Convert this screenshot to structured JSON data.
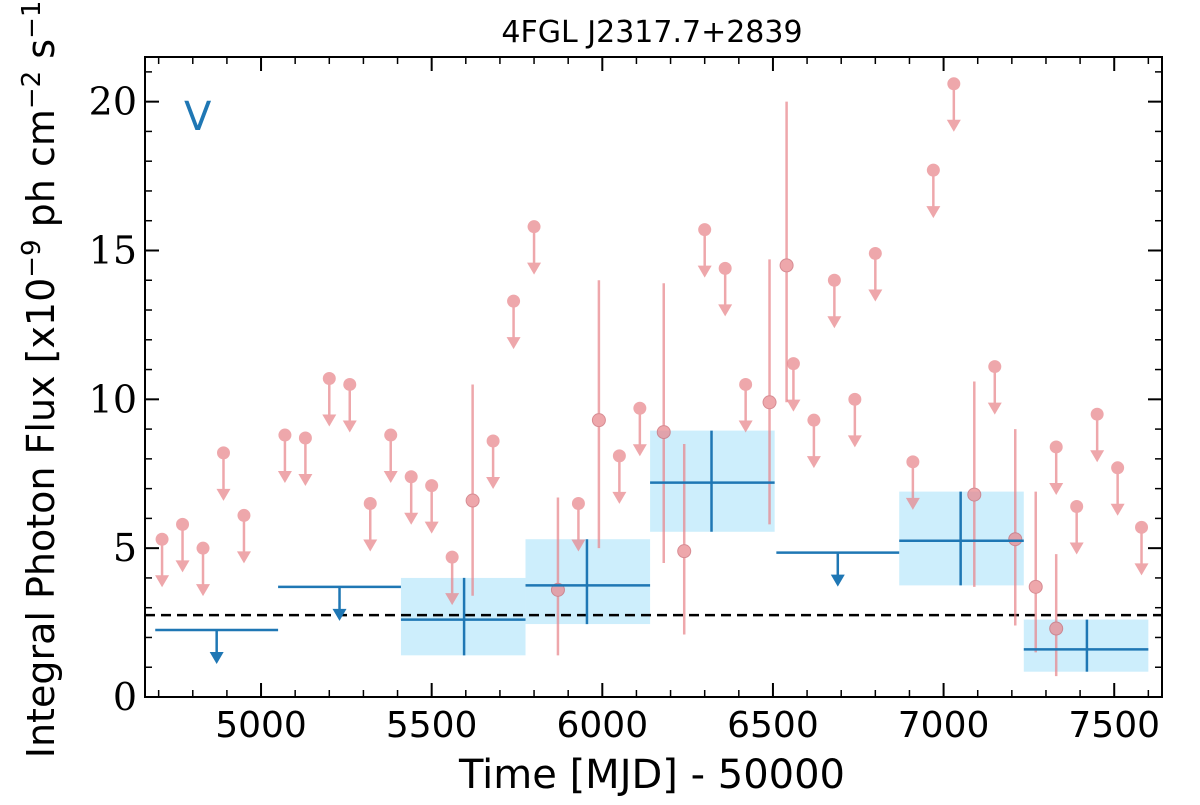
{
  "chart_data": {
    "type": "scatter",
    "title": "4FGL J2317.7+2839",
    "xlabel": "Time [MJD] - 50000",
    "ylabel_main": "Integral Photon Flux [x10",
    "ylabel_exp1": "−9",
    "ylabel_mid": " ph cm",
    "ylabel_exp2": "−2",
    "ylabel_tail": " s",
    "ylabel_exp3": "−1",
    "ylabel_close": "]",
    "annotation": "V",
    "xlim": [
      4660,
      7640
    ],
    "ylim": [
      0,
      21.5
    ],
    "xticks": [
      5000,
      5500,
      6000,
      6500,
      7000,
      7500
    ],
    "yticks": [
      0,
      5,
      10,
      15,
      20
    ],
    "reference_line": 2.75,
    "colors": {
      "short_bins": "#e8868c",
      "long_bins": "#1f77b4",
      "long_bin_fill": "#cdeefc",
      "reference": "#000000"
    },
    "short_bin_upper_limits": [
      {
        "x": 4710,
        "y": 5.3
      },
      {
        "x": 4770,
        "y": 5.8
      },
      {
        "x": 4830,
        "y": 5.0
      },
      {
        "x": 4890,
        "y": 8.2
      },
      {
        "x": 4950,
        "y": 6.1
      },
      {
        "x": 5070,
        "y": 8.8
      },
      {
        "x": 5130,
        "y": 8.7
      },
      {
        "x": 5200,
        "y": 10.7
      },
      {
        "x": 5260,
        "y": 10.5
      },
      {
        "x": 5320,
        "y": 6.5
      },
      {
        "x": 5380,
        "y": 8.8
      },
      {
        "x": 5440,
        "y": 7.4
      },
      {
        "x": 5500,
        "y": 7.1
      },
      {
        "x": 5560,
        "y": 4.7
      },
      {
        "x": 5680,
        "y": 8.6
      },
      {
        "x": 5740,
        "y": 13.3
      },
      {
        "x": 5800,
        "y": 15.8
      },
      {
        "x": 5930,
        "y": 6.5
      },
      {
        "x": 6050,
        "y": 8.1
      },
      {
        "x": 6110,
        "y": 9.7
      },
      {
        "x": 6300,
        "y": 15.7
      },
      {
        "x": 6360,
        "y": 14.4
      },
      {
        "x": 6420,
        "y": 10.5
      },
      {
        "x": 6560,
        "y": 11.2
      },
      {
        "x": 6620,
        "y": 9.3
      },
      {
        "x": 6680,
        "y": 14.0
      },
      {
        "x": 6740,
        "y": 10.0
      },
      {
        "x": 6800,
        "y": 14.9
      },
      {
        "x": 6910,
        "y": 7.9
      },
      {
        "x": 6970,
        "y": 17.7
      },
      {
        "x": 7030,
        "y": 20.6
      },
      {
        "x": 7150,
        "y": 11.1
      },
      {
        "x": 7330,
        "y": 8.4
      },
      {
        "x": 7390,
        "y": 6.4
      },
      {
        "x": 7450,
        "y": 9.5
      },
      {
        "x": 7510,
        "y": 7.7
      },
      {
        "x": 7580,
        "y": 5.7
      }
    ],
    "short_bin_detections": [
      {
        "x": 5620,
        "y": 6.6,
        "ylow": 3.4,
        "yhigh": 10.5
      },
      {
        "x": 5870,
        "y": 3.6,
        "ylow": 1.4,
        "yhigh": 6.7
      },
      {
        "x": 5990,
        "y": 9.3,
        "ylow": 5.0,
        "yhigh": 14.0
      },
      {
        "x": 6180,
        "y": 8.9,
        "ylow": 4.5,
        "yhigh": 13.9
      },
      {
        "x": 6240,
        "y": 4.9,
        "ylow": 2.1,
        "yhigh": 8.5
      },
      {
        "x": 6490,
        "y": 9.9,
        "ylow": 5.8,
        "yhigh": 14.7
      },
      {
        "x": 6540,
        "y": 14.5,
        "ylow": 9.9,
        "yhigh": 20.0
      },
      {
        "x": 7090,
        "y": 6.8,
        "ylow": 3.7,
        "yhigh": 10.6
      },
      {
        "x": 7210,
        "y": 5.3,
        "ylow": 2.4,
        "yhigh": 9.0
      },
      {
        "x": 7270,
        "y": 3.7,
        "ylow": 1.5,
        "yhigh": 6.9
      },
      {
        "x": 7330,
        "y": 2.3,
        "ylow": 0.7,
        "yhigh": 4.8
      }
    ],
    "long_bin_upper_limits": [
      {
        "x_start": 4690,
        "x_end": 5050,
        "x": 4870,
        "y": 2.25
      },
      {
        "x_start": 5050,
        "x_end": 5410,
        "x": 5230,
        "y": 3.7
      },
      {
        "x_start": 6510,
        "x_end": 6870,
        "x": 6690,
        "y": 4.85
      }
    ],
    "long_bin_detections": [
      {
        "x_start": 5410,
        "x_end": 5775,
        "x": 5595,
        "y": 2.6,
        "ylow": 1.4,
        "yhigh": 4.0
      },
      {
        "x_start": 5775,
        "x_end": 6140,
        "x": 5955,
        "y": 3.75,
        "ylow": 2.45,
        "yhigh": 5.3
      },
      {
        "x_start": 6140,
        "x_end": 6505,
        "x": 6320,
        "y": 7.2,
        "ylow": 5.55,
        "yhigh": 8.95
      },
      {
        "x_start": 6870,
        "x_end": 7235,
        "x": 7050,
        "y": 5.25,
        "ylow": 3.75,
        "yhigh": 6.9
      },
      {
        "x_start": 7235,
        "x_end": 7600,
        "x": 7420,
        "y": 1.6,
        "ylow": 0.85,
        "yhigh": 2.6
      }
    ]
  }
}
